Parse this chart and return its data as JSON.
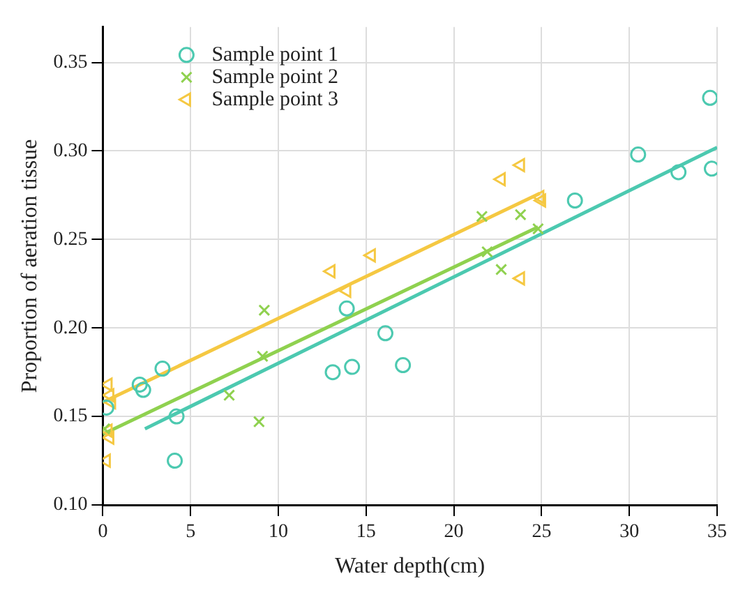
{
  "chart_data": {
    "type": "scatter",
    "xlabel": "Water depth(cm)",
    "ylabel": "Proportion of aeration tissue",
    "xlim": [
      0,
      35
    ],
    "ylim": [
      0.1,
      0.37
    ],
    "xticks": [
      0,
      5,
      10,
      15,
      20,
      25,
      30,
      35
    ],
    "yticks": [
      {
        "value": 0.1,
        "label": "0.10"
      },
      0.15,
      {
        "value": 0.2,
        "label": "0.20"
      },
      0.25,
      {
        "value": 0.3,
        "label": "0.30"
      },
      0.35
    ],
    "grid": true,
    "legend": "top left",
    "series": [
      {
        "name": "Sample point 1",
        "color": "#4cc9b0",
        "marker": "circle",
        "x": [
          0.2,
          2.1,
          2.3,
          3.4,
          4.2,
          4.1,
          13.1,
          13.9,
          14.2,
          16.1,
          17.1,
          26.9,
          30.5,
          32.8,
          34.6,
          34.7
        ],
        "values": [
          0.155,
          0.168,
          0.165,
          0.177,
          0.15,
          0.125,
          0.175,
          0.211,
          0.178,
          0.197,
          0.179,
          0.272,
          0.298,
          0.288,
          0.33,
          0.29
        ]
      },
      {
        "name": "Sample point 2",
        "color": "#8fd14f",
        "marker": "cross",
        "x": [
          0.1,
          7.2,
          8.9,
          9.1,
          9.2,
          21.6,
          21.9,
          22.7,
          23.8,
          24.8
        ],
        "values": [
          0.143,
          0.162,
          0.147,
          0.184,
          0.21,
          0.263,
          0.243,
          0.233,
          0.264,
          0.256
        ]
      },
      {
        "name": "Sample point 3",
        "color": "#f5c842",
        "marker": "triangle",
        "x": [
          0.3,
          0.4,
          0.5,
          0.3,
          0.4,
          0.2,
          13.0,
          13.9,
          15.3,
          22.7,
          23.8,
          23.8,
          24.9,
          25.0
        ],
        "values": [
          0.168,
          0.162,
          0.158,
          0.142,
          0.138,
          0.125,
          0.232,
          0.221,
          0.241,
          0.284,
          0.292,
          0.228,
          0.274,
          0.272
        ]
      },
      {
        "type": "line",
        "color": "#4cc9b0",
        "x": [
          2.4,
          35
        ],
        "values": [
          0.143,
          0.302
        ]
      },
      {
        "type": "line",
        "color": "#8fd14f",
        "x": [
          0,
          24.8
        ],
        "values": [
          0.14,
          0.257
        ]
      },
      {
        "type": "line",
        "color": "#f5c842",
        "x": [
          0,
          24.9
        ],
        "values": [
          0.158,
          0.276
        ]
      }
    ]
  }
}
